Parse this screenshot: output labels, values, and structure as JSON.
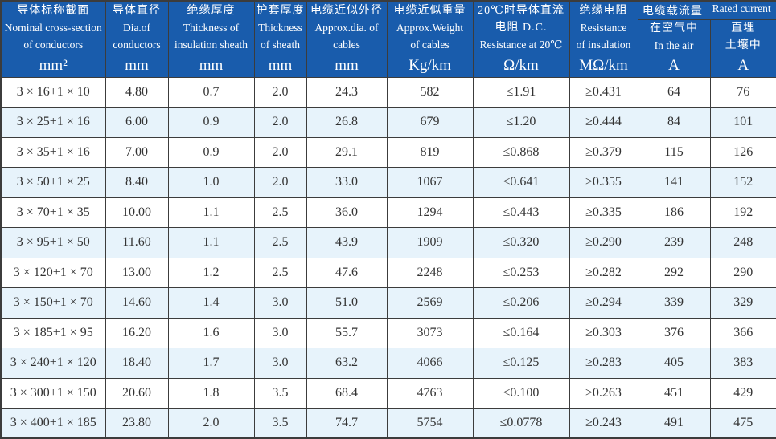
{
  "theme": {
    "header_bg": "#195cac",
    "alt_row_bg": "#e7f3fb",
    "border_color": "#3c3c3c",
    "data_text_color": "#333333",
    "header_text_color": "#ffffff"
  },
  "table": {
    "header": {
      "nominal": {
        "l1": "导体标称截面",
        "l2": "Nominal cross-section",
        "l3": "of conductors",
        "unit": "mm²"
      },
      "diameter": {
        "l1": "导体直径",
        "l2": "Dia.of",
        "l3": "conductors",
        "unit": "mm"
      },
      "insulation": {
        "l1": "绝缘厚度",
        "l2": "Thickness of",
        "l3": "insulation sheath",
        "unit": "mm"
      },
      "sheath": {
        "l1": "护套厚度",
        "l2": "Thickness",
        "l3": "of sheath",
        "unit": "mm"
      },
      "outer_dia": {
        "l1": "电缆近似外径",
        "l2": "Approx.dia. of",
        "l3": "cables",
        "unit": "mm"
      },
      "weight": {
        "l1": "电缆近似重量",
        "l2": "Approx.Weight",
        "l3": "of cables",
        "unit": "Kg/km"
      },
      "dc_resistance": {
        "l1": "20℃时导体直流",
        "l2": "电阻 D.C.",
        "l3": "Resistance at 20℃",
        "unit": "Ω/km"
      },
      "insulation_resistance": {
        "l1": "绝缘电阻",
        "l2": "Resistance",
        "l3": "of insulation",
        "unit": "MΩ/km"
      },
      "rated_current_group": {
        "zh": "电缆载流量",
        "en": "Rated current"
      },
      "in_air": {
        "l1": "在空气中",
        "l2": "In the air",
        "unit": "A"
      },
      "buried": {
        "l1": "直埋",
        "l2": "土壤中",
        "unit": "A"
      }
    },
    "rows": [
      [
        "3 × 16+1 × 10",
        "4.80",
        "0.7",
        "2.0",
        "24.3",
        "582",
        "≤1.91",
        "≥0.431",
        "64",
        "76"
      ],
      [
        "3 × 25+1 × 16",
        "6.00",
        "0.9",
        "2.0",
        "26.8",
        "679",
        "≤1.20",
        "≥0.444",
        "84",
        "101"
      ],
      [
        "3 × 35+1 × 16",
        "7.00",
        "0.9",
        "2.0",
        "29.1",
        "819",
        "≤0.868",
        "≥0.379",
        "115",
        "126"
      ],
      [
        "3 × 50+1 × 25",
        "8.40",
        "1.0",
        "2.0",
        "33.0",
        "1067",
        "≤0.641",
        "≥0.355",
        "141",
        "152"
      ],
      [
        "3 × 70+1 × 35",
        "10.00",
        "1.1",
        "2.5",
        "36.0",
        "1294",
        "≤0.443",
        "≥0.335",
        "186",
        "192"
      ],
      [
        "3 × 95+1 × 50",
        "11.60",
        "1.1",
        "2.5",
        "43.9",
        "1909",
        "≤0.320",
        "≥0.290",
        "239",
        "248"
      ],
      [
        "3 × 120+1 × 70",
        "13.00",
        "1.2",
        "2.5",
        "47.6",
        "2248",
        "≤0.253",
        "≥0.282",
        "292",
        "290"
      ],
      [
        "3 × 150+1 × 70",
        "14.60",
        "1.4",
        "3.0",
        "51.0",
        "2569",
        "≤0.206",
        "≥0.294",
        "339",
        "329"
      ],
      [
        "3 × 185+1 × 95",
        "16.20",
        "1.6",
        "3.0",
        "55.7",
        "3073",
        "≤0.164",
        "≥0.303",
        "376",
        "366"
      ],
      [
        "3 × 240+1 × 120",
        "18.40",
        "1.7",
        "3.0",
        "63.2",
        "4066",
        "≤0.125",
        "≥0.283",
        "405",
        "383"
      ],
      [
        "3 × 300+1 × 150",
        "20.60",
        "1.8",
        "3.5",
        "68.4",
        "4763",
        "≤0.100",
        "≥0.263",
        "451",
        "429"
      ],
      [
        "3 × 400+1 × 185",
        "23.80",
        "2.0",
        "3.5",
        "74.7",
        "5754",
        "≤0.0778",
        "≥0.243",
        "491",
        "475"
      ]
    ]
  }
}
